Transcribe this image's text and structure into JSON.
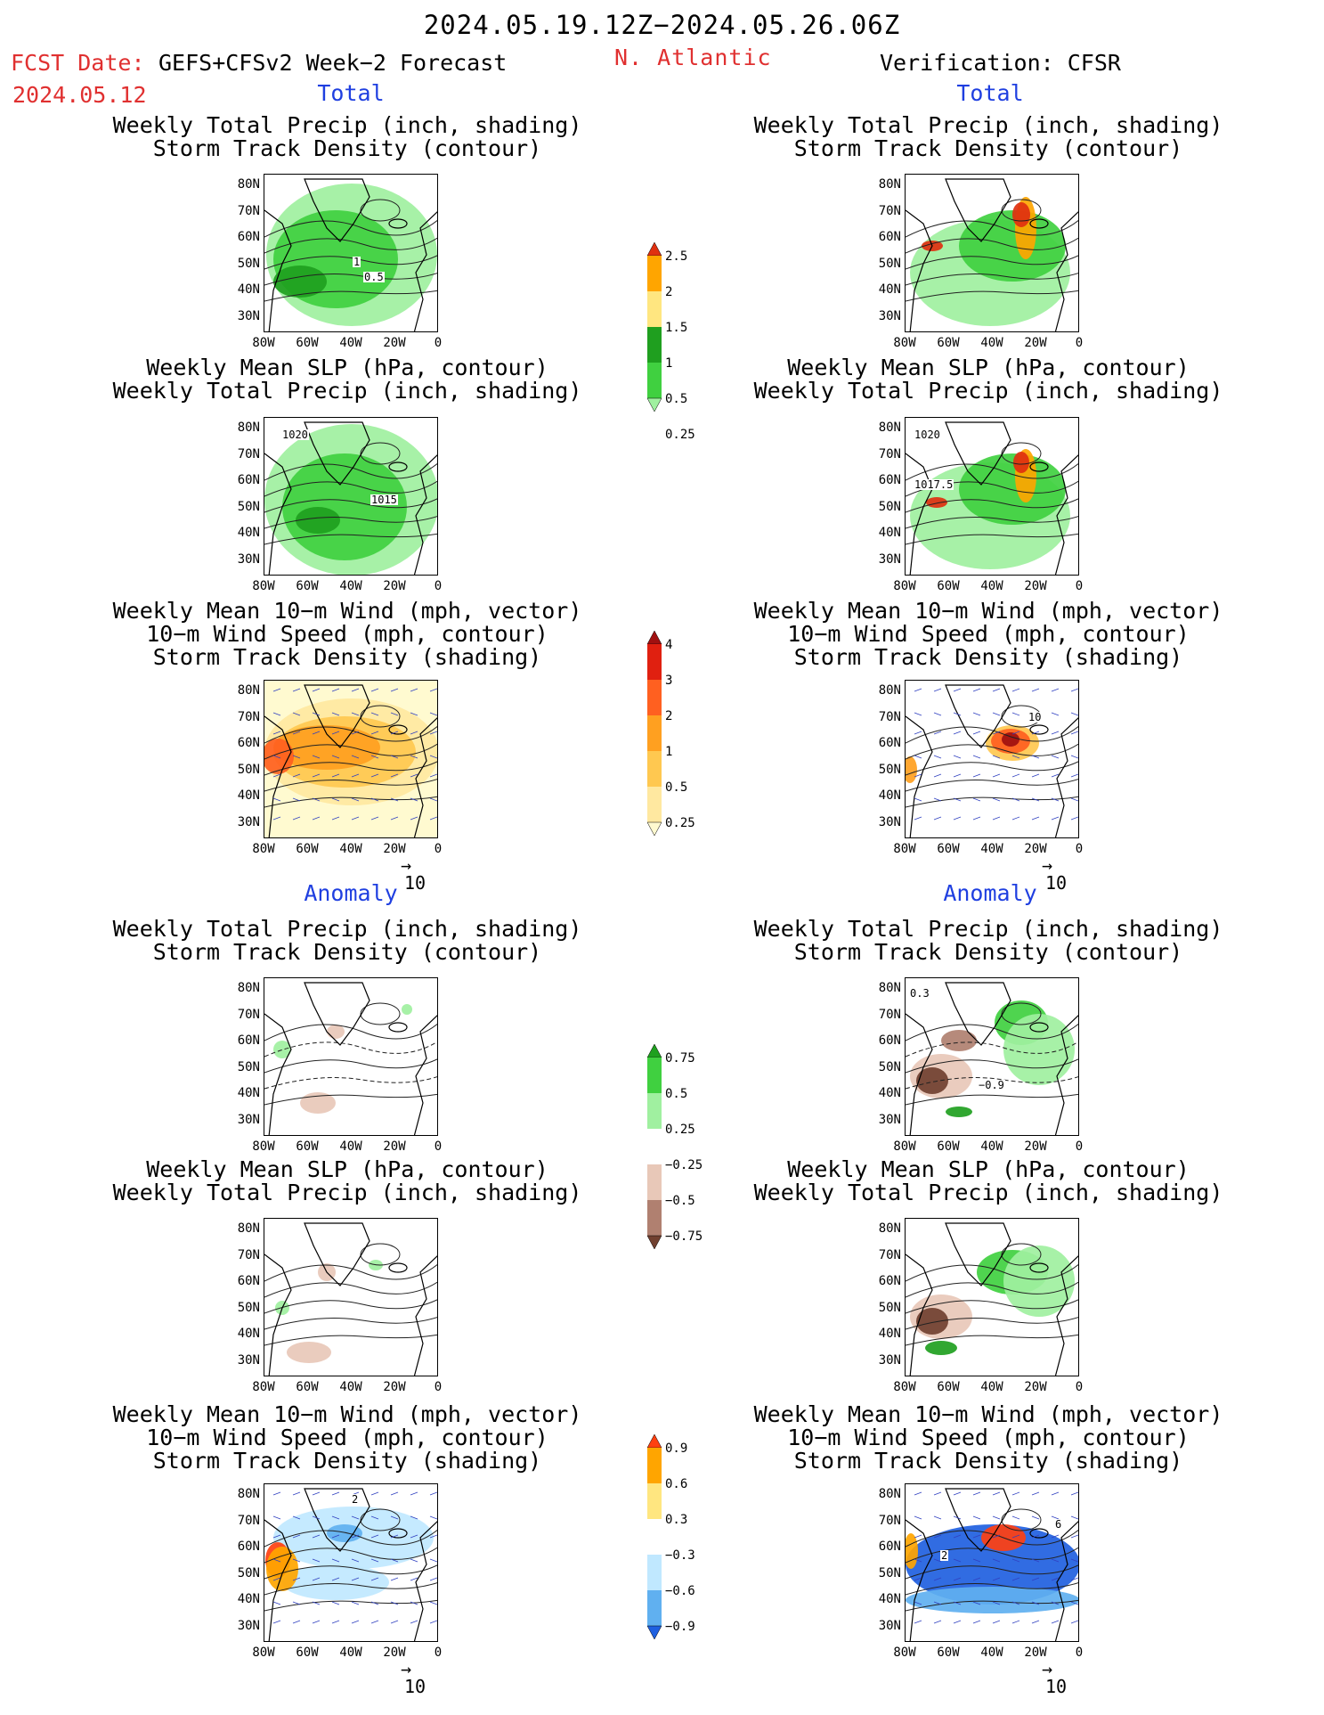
{
  "header": {
    "valid_period": "2024.05.19.12Z−2024.05.26.06Z",
    "fcst_label": "FCST Date:",
    "fcst_model": "GEFS+CFSv2 Week−2 Forecast",
    "fcst_date": "2024.05.12",
    "region": "N. Atlantic",
    "verification": "Verification: CFSR"
  },
  "sections": {
    "total": "Total",
    "anomaly": "Anomaly"
  },
  "panel_titles": {
    "precip_storm": [
      "Weekly Total Precip (inch, shading)",
      "Storm Track Density (contour)"
    ],
    "slp_precip": [
      "Weekly Mean SLP (hPa, contour)",
      "Weekly Total Precip (inch, shading)"
    ],
    "wind_storm": [
      "Weekly Mean 10−m Wind (mph, vector)",
      "10−m Wind Speed (mph, contour)",
      "Storm Track Density (shading)"
    ]
  },
  "axes": {
    "lat_labels": [
      "80N",
      "70N",
      "60N",
      "50N",
      "40N",
      "30N"
    ],
    "lon_labels": [
      "80W",
      "60W",
      "40W",
      "20W",
      "0"
    ],
    "vector_ref": "10"
  },
  "contour_labels": {
    "fcst_total_precip": [
      "1",
      "0.5"
    ],
    "fcst_total_slp": [
      "1020",
      "1015"
    ],
    "obs_total_slp": [
      "1020",
      "1017.5"
    ],
    "obs_total_wind": [
      "10"
    ],
    "obs_anom_precip": [
      "0.3",
      "−0.9"
    ],
    "fcst_anom_wind": [
      "2"
    ],
    "obs_anom_wind": [
      "2",
      "6"
    ]
  },
  "colorbars": {
    "precip_total": {
      "labels": [
        "2.5",
        "2",
        "1.5",
        "1",
        "0.5",
        "0.25"
      ],
      "colors": [
        "#e03010",
        "#ffa500",
        "#ffe680",
        "#1f9f1f",
        "#40d040",
        "#a0f0a0"
      ]
    },
    "storm_total": {
      "labels": [
        "4",
        "3",
        "2",
        "1",
        "0.5",
        "0.25"
      ],
      "colors": [
        "#a01010",
        "#e02010",
        "#ff6020",
        "#ffa020",
        "#ffc850",
        "#ffe8a0",
        "#fffad0"
      ]
    },
    "precip_anom": {
      "labels": [
        "0.75",
        "0.5",
        "0.25",
        "−0.25",
        "−0.5",
        "−0.75"
      ],
      "colors": [
        "#1fa01f",
        "#40d040",
        "#a0f0a0",
        "#ffffff",
        "#e8c8b8",
        "#b08070",
        "#704030"
      ]
    },
    "storm_anom": {
      "labels": [
        "0.9",
        "0.6",
        "0.3",
        "−0.3",
        "−0.6",
        "−0.9"
      ],
      "colors": [
        "#ff4010",
        "#ffa500",
        "#ffe680",
        "#ffffff",
        "#c0e8ff",
        "#60b0f0",
        "#1f60e0"
      ]
    }
  },
  "chart_data": [
    {
      "type": "heatmap",
      "panel": "forecast-total-precip-storm",
      "title": "Weekly Total Precip (inch, shading) / Storm Track Density (contour)",
      "xlabel": "",
      "ylabel": "",
      "xlim": [
        "80W",
        "0"
      ],
      "ylim": [
        "25N",
        "85N"
      ],
      "contour_labels": [
        "1",
        "0.5"
      ]
    },
    {
      "type": "heatmap",
      "panel": "forecast-total-slp-precip",
      "title": "Weekly Mean SLP (hPa, contour) / Weekly Total Precip (inch, shading)",
      "contour_labels": [
        "1020",
        "1015"
      ]
    },
    {
      "type": "heatmap",
      "panel": "forecast-total-wind-storm",
      "title": "Weekly Mean 10−m Wind / 10−m Wind Speed / Storm Track Density"
    },
    {
      "type": "heatmap",
      "panel": "forecast-anom-precip-storm",
      "title": "Anomaly: Weekly Total Precip / Storm Track Density"
    },
    {
      "type": "heatmap",
      "panel": "forecast-anom-slp-precip",
      "title": "Anomaly: Weekly Mean SLP / Weekly Total Precip"
    },
    {
      "type": "heatmap",
      "panel": "forecast-anom-wind-storm",
      "title": "Anomaly: 10−m Wind / Wind Speed / Storm Track Density",
      "contour_labels": [
        "2"
      ]
    },
    {
      "type": "heatmap",
      "panel": "verif-total-precip-storm",
      "title": "Weekly Total Precip (inch, shading) / Storm Track Density (contour)"
    },
    {
      "type": "heatmap",
      "panel": "verif-total-slp-precip",
      "title": "Weekly Mean SLP (hPa, contour) / Weekly Total Precip (inch, shading)",
      "contour_labels": [
        "1020",
        "1017.5"
      ]
    },
    {
      "type": "heatmap",
      "panel": "verif-total-wind-storm",
      "title": "Weekly Mean 10−m Wind / 10−m Wind Speed / Storm Track Density",
      "contour_labels": [
        "10"
      ]
    },
    {
      "type": "heatmap",
      "panel": "verif-anom-precip-storm",
      "title": "Anomaly: Weekly Total Precip / Storm Track Density",
      "contour_labels": [
        "0.3",
        "−0.9"
      ]
    },
    {
      "type": "heatmap",
      "panel": "verif-anom-slp-precip",
      "title": "Anomaly: Weekly Mean SLP / Weekly Total Precip"
    },
    {
      "type": "heatmap",
      "panel": "verif-anom-wind-storm",
      "title": "Anomaly: 10−m Wind / Wind Speed / Storm Track Density",
      "contour_labels": [
        "2",
        "6"
      ]
    }
  ]
}
